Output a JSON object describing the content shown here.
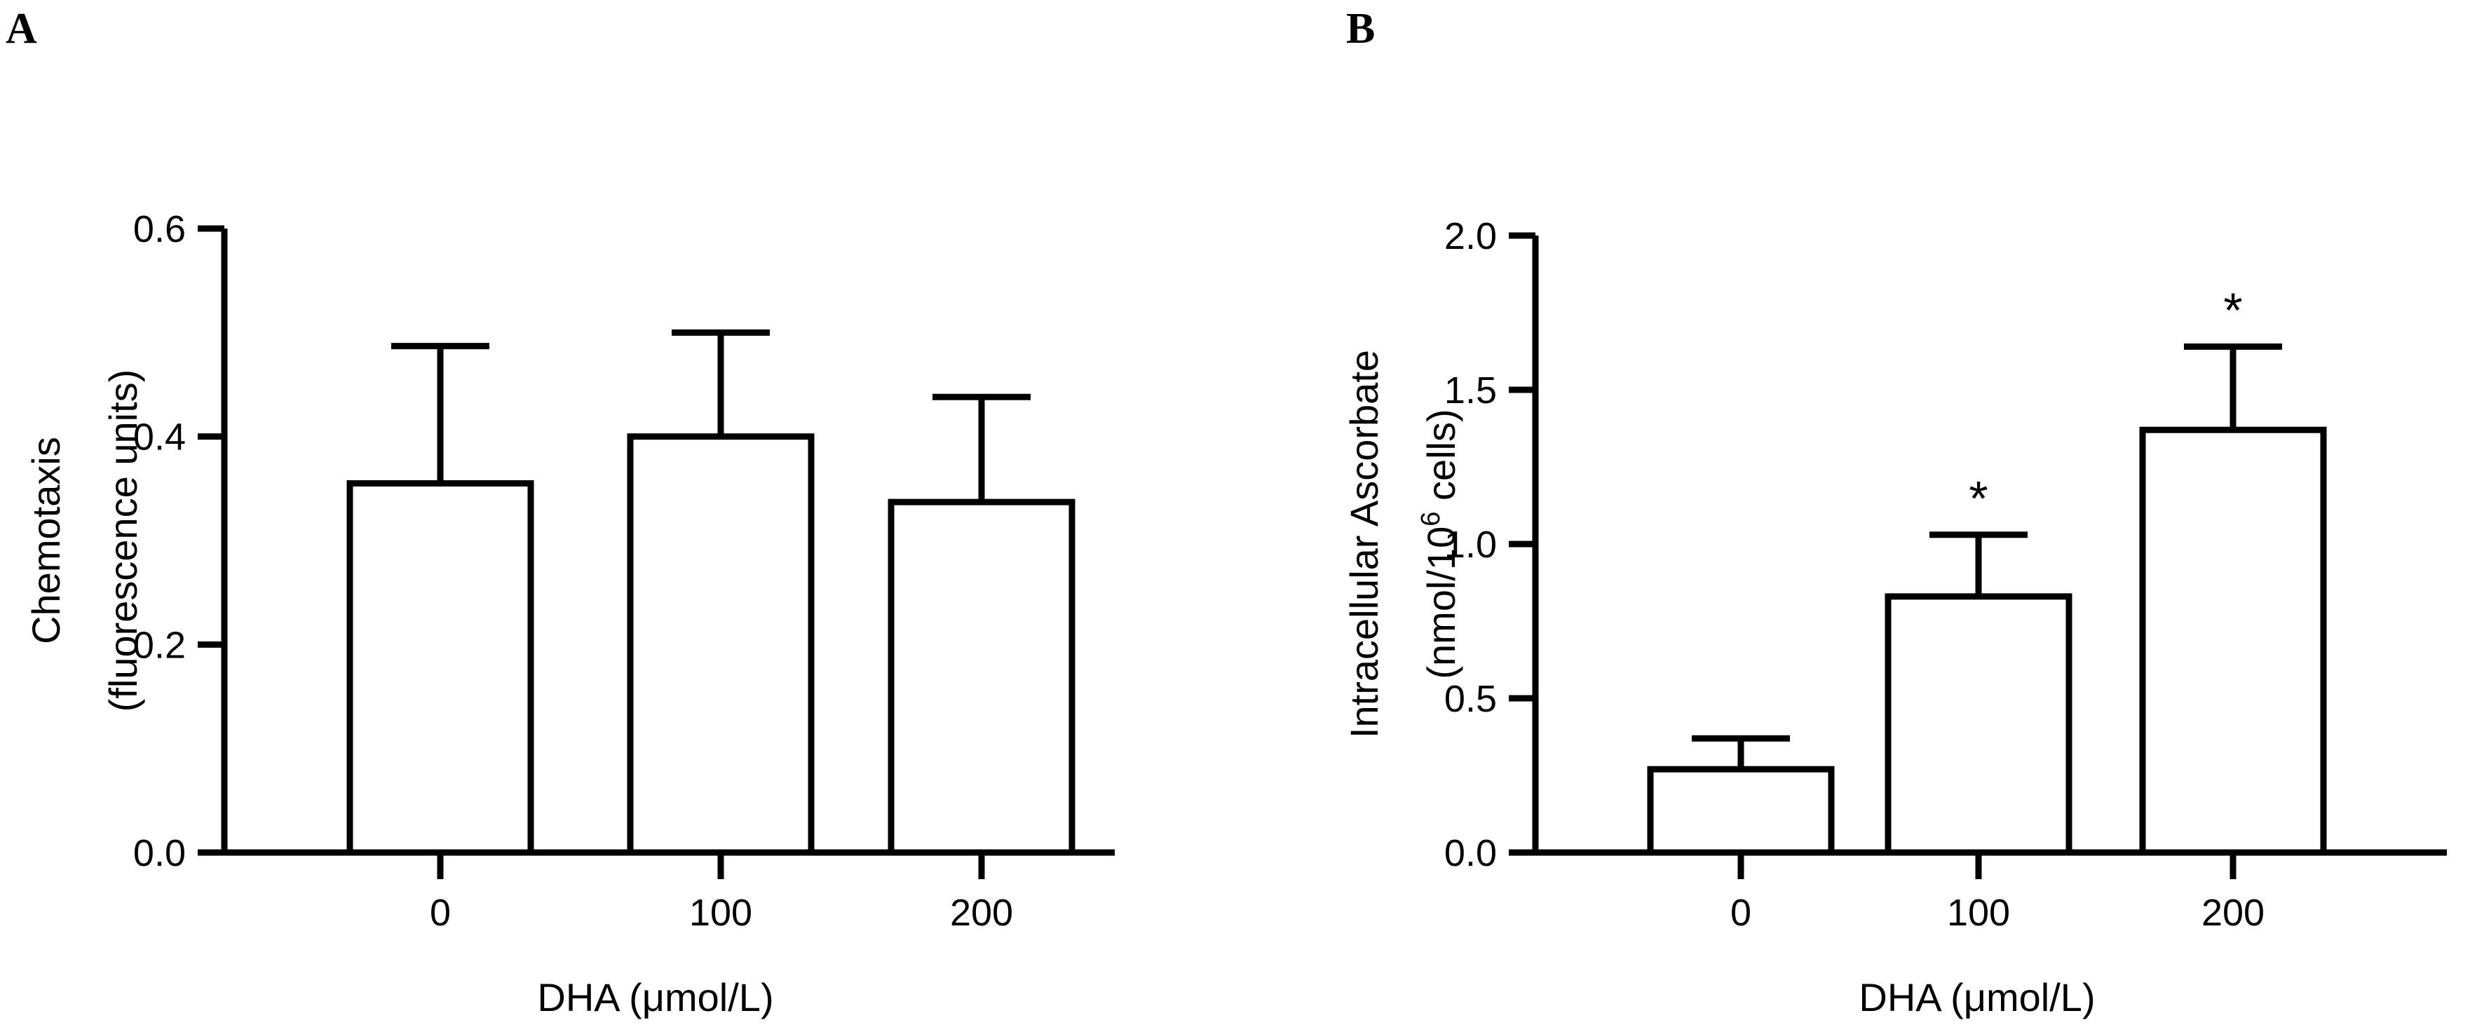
{
  "figure": {
    "panels": [
      "A",
      "B"
    ]
  },
  "chart_data": [
    {
      "panel": "A",
      "type": "bar",
      "categories": [
        "0",
        "100",
        "200"
      ],
      "values": [
        0.355,
        0.4,
        0.337
      ],
      "errors_upper": [
        0.487,
        0.5,
        0.438
      ],
      "significance": [
        "",
        "",
        ""
      ],
      "ylim": [
        0.0,
        0.6
      ],
      "yticks": [
        "0.0",
        "0.2",
        "0.4",
        "0.6"
      ],
      "ytick_values": [
        0.0,
        0.2,
        0.4,
        0.6
      ],
      "ylabel_line1": "Chemotaxis",
      "ylabel_line2": "(fluorescence units)",
      "xlabel": "DHA (μmol/L)",
      "title": ""
    },
    {
      "panel": "B",
      "type": "bar",
      "categories": [
        "0",
        "100",
        "200"
      ],
      "values": [
        0.27,
        0.83,
        1.37
      ],
      "errors_upper": [
        0.37,
        1.03,
        1.64
      ],
      "significance": [
        "",
        "*",
        "*"
      ],
      "ylim": [
        0.0,
        2.0
      ],
      "yticks": [
        "0.0",
        "0.5",
        "1.0",
        "1.5",
        "2.0"
      ],
      "ytick_values": [
        0.0,
        0.5,
        1.0,
        1.5,
        2.0
      ],
      "ylabel_line1": "Intracellular Ascorbate",
      "ylabel_line2": "(nmol/10",
      "ylabel_line2_sup": "6",
      "ylabel_line2_end": " cells)",
      "xlabel": "DHA (μmol/L)",
      "title": ""
    }
  ]
}
